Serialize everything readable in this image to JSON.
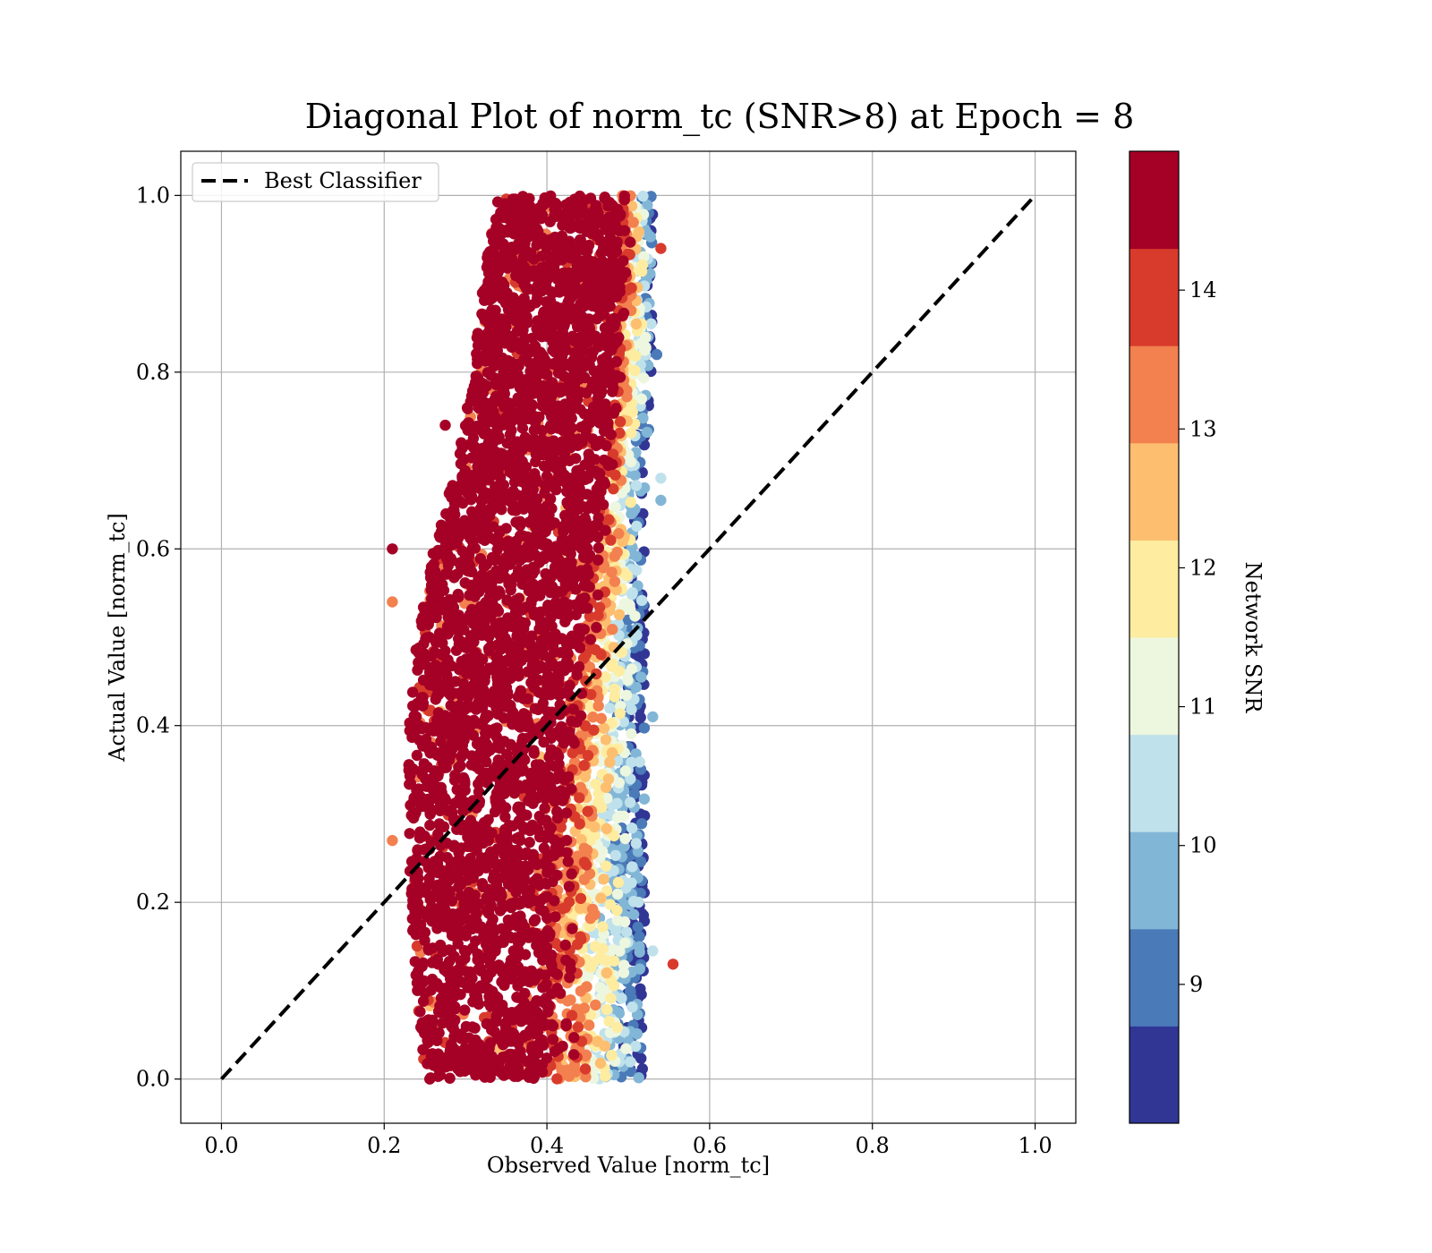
{
  "chart_data": {
    "type": "scatter",
    "title": "Diagonal Plot of norm_tc (SNR>8) at Epoch = 8",
    "xlabel": "Observed Value [norm_tc]",
    "ylabel": "Actual Value [norm_tc]",
    "xlim": [
      -0.05,
      1.05
    ],
    "ylim": [
      -0.05,
      1.05
    ],
    "xticks": [
      "0.0",
      "0.2",
      "0.4",
      "0.6",
      "0.8",
      "1.0"
    ],
    "yticks": [
      "0.0",
      "0.2",
      "0.4",
      "0.6",
      "0.8",
      "1.0"
    ],
    "grid": true,
    "legend": {
      "position": "top-left",
      "entries": [
        "Best Classifier"
      ]
    },
    "reference_line": {
      "name": "Best Classifier",
      "style": "dashed",
      "color": "#000000",
      "x": [
        0.0,
        1.0
      ],
      "y": [
        0.0,
        1.0
      ]
    },
    "scatter_bands": [
      {
        "y": 0.0,
        "x_min": 0.25,
        "x_max": 0.52,
        "dense_max": 0.4
      },
      {
        "y": 0.1,
        "x_min": 0.24,
        "x_max": 0.52,
        "dense_max": 0.4
      },
      {
        "y": 0.2,
        "x_min": 0.23,
        "x_max": 0.52,
        "dense_max": 0.4
      },
      {
        "y": 0.3,
        "x_min": 0.23,
        "x_max": 0.52,
        "dense_max": 0.41
      },
      {
        "y": 0.4,
        "x_min": 0.23,
        "x_max": 0.52,
        "dense_max": 0.42
      },
      {
        "y": 0.5,
        "x_min": 0.24,
        "x_max": 0.52,
        "dense_max": 0.44
      },
      {
        "y": 0.6,
        "x_min": 0.26,
        "x_max": 0.52,
        "dense_max": 0.46
      },
      {
        "y": 0.7,
        "x_min": 0.29,
        "x_max": 0.52,
        "dense_max": 0.47
      },
      {
        "y": 0.8,
        "x_min": 0.31,
        "x_max": 0.53,
        "dense_max": 0.48
      },
      {
        "y": 0.9,
        "x_min": 0.32,
        "x_max": 0.53,
        "dense_max": 0.49
      },
      {
        "y": 1.0,
        "x_min": 0.34,
        "x_max": 0.53,
        "dense_max": 0.49
      }
    ],
    "outliers": [
      {
        "x": 0.21,
        "y": 0.6,
        "snr": 14.5
      },
      {
        "x": 0.21,
        "y": 0.54,
        "snr": 13.2
      },
      {
        "x": 0.21,
        "y": 0.27,
        "snr": 13.4
      },
      {
        "x": 0.555,
        "y": 0.13,
        "snr": 13.9
      },
      {
        "x": 0.275,
        "y": 0.74,
        "snr": 14.5
      },
      {
        "x": 0.54,
        "y": 0.68,
        "snr": 10.3
      },
      {
        "x": 0.54,
        "y": 0.655,
        "snr": 9.6
      },
      {
        "x": 0.535,
        "y": 0.82,
        "snr": 9.2
      },
      {
        "x": 0.54,
        "y": 0.94,
        "snr": 13.8
      },
      {
        "x": 0.53,
        "y": 0.145,
        "snr": 10.5
      },
      {
        "x": 0.53,
        "y": 0.41,
        "snr": 10.0
      },
      {
        "x": 0.525,
        "y": 0.735,
        "snr": 9.1
      }
    ],
    "colorbar": {
      "label": "Network SNR",
      "min": 8.0,
      "max": 15.0,
      "ticks": [
        "9",
        "10",
        "11",
        "12",
        "13",
        "14"
      ],
      "tick_values": [
        9,
        10,
        11,
        12,
        13,
        14
      ],
      "colors": [
        "#313695",
        "#4a7ab8",
        "#82b6d6",
        "#bfe1ec",
        "#edf6df",
        "#feeca0",
        "#fdbe6f",
        "#f3804f",
        "#d83b2c",
        "#a50026"
      ]
    }
  }
}
